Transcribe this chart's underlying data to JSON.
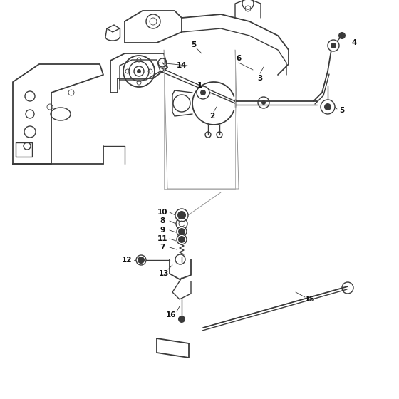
{
  "bg_color": "#ffffff",
  "line_color": "#3a3a3a",
  "label_color": "#111111",
  "lw_main": 1.0,
  "lw_thin": 0.6,
  "lw_thick": 1.3,
  "fig_width": 5.6,
  "fig_height": 5.6,
  "dpi": 100
}
